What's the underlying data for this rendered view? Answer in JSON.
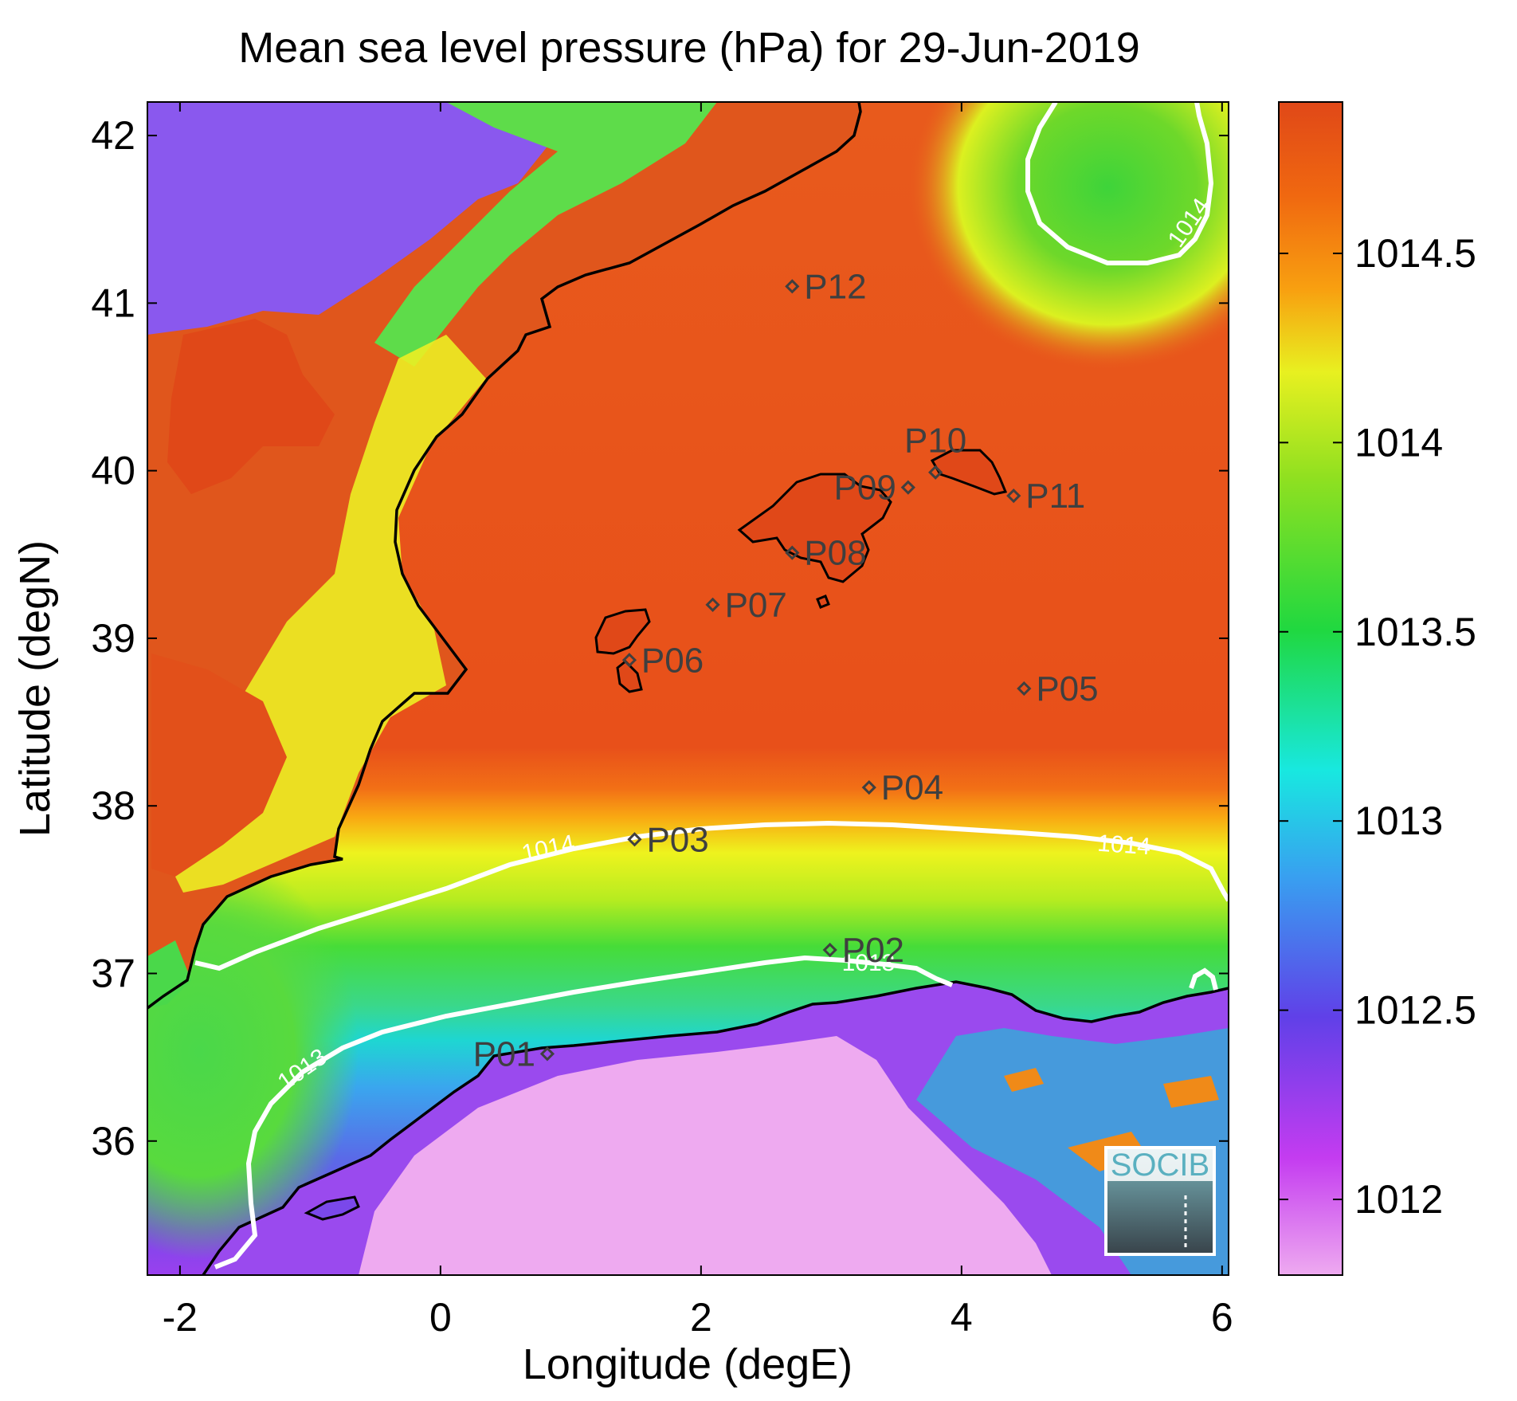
{
  "chart_data": {
    "type": "heatmap",
    "title": "Mean sea level pressure (hPa) for 29-Jun-2019",
    "xlabel": "Longitude (degE)",
    "ylabel": "Latitude (degN)",
    "xlim": [
      -2.25,
      6.05
    ],
    "ylim": [
      35.2,
      42.2
    ],
    "x_ticks": [
      "-2",
      "0",
      "2",
      "4",
      "6"
    ],
    "x_tick_values": [
      -2,
      0,
      2,
      4,
      6
    ],
    "y_ticks": [
      "36",
      "37",
      "38",
      "39",
      "40",
      "41",
      "42"
    ],
    "y_tick_values": [
      36,
      37,
      38,
      39,
      40,
      41,
      42
    ],
    "colorbar": {
      "range": [
        1011.8,
        1014.9
      ],
      "ticks": [
        "1012",
        "1012.5",
        "1013",
        "1013.5",
        "1014",
        "1014.5"
      ],
      "tick_values": [
        1012,
        1012.5,
        1013,
        1013.5,
        1014,
        1014.5
      ],
      "colors": [
        "#eeaaf0",
        "#c43cf0",
        "#6040e8",
        "#38a0f0",
        "#18e8e0",
        "#20d840",
        "#90e020",
        "#e8f020",
        "#f8a010",
        "#f06810",
        "#e04818"
      ]
    },
    "contours": [
      {
        "label": "1014",
        "color": "#ffffff"
      },
      {
        "label": "1013",
        "color": "#ffffff"
      }
    ],
    "stations": [
      {
        "name": "P01",
        "lon": 0.82,
        "lat": 36.52
      },
      {
        "name": "P02",
        "lon": 2.99,
        "lat": 37.14
      },
      {
        "name": "P03",
        "lon": 1.49,
        "lat": 37.8
      },
      {
        "name": "P04",
        "lon": 3.29,
        "lat": 38.11
      },
      {
        "name": "P05",
        "lon": 4.48,
        "lat": 38.7
      },
      {
        "name": "P06",
        "lon": 1.45,
        "lat": 38.87
      },
      {
        "name": "P07",
        "lon": 2.09,
        "lat": 39.2
      },
      {
        "name": "P08",
        "lon": 2.7,
        "lat": 39.51
      },
      {
        "name": "P09",
        "lon": 3.59,
        "lat": 39.9
      },
      {
        "name": "P10",
        "lon": 3.8,
        "lat": 39.99
      },
      {
        "name": "P11",
        "lon": 4.4,
        "lat": 39.85
      },
      {
        "name": "P12",
        "lon": 2.7,
        "lat": 41.1
      }
    ]
  },
  "logo": {
    "text": "SOCIB"
  }
}
